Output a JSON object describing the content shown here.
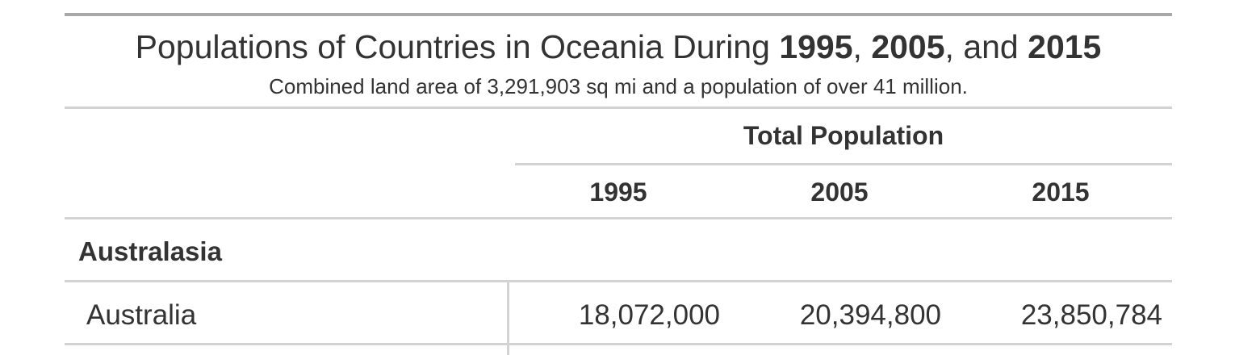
{
  "table": {
    "title": {
      "prefix": "Populations of Countries in Oceania During ",
      "year1": "1995",
      "sep1": ", ",
      "year2": "2005",
      "sep2": ", and ",
      "year3": "2015"
    },
    "subtitle": "Combined land area of 3,291,903 sq mi and a population of over 41 million.",
    "spanner": "Total Population",
    "columns": [
      "1995",
      "2005",
      "2015"
    ],
    "groups": [
      {
        "label": "Australasia",
        "rows": [
          {
            "country": "Australia",
            "values": [
              "18,072,000",
              "20,394,800",
              "23,850,784"
            ]
          }
        ]
      }
    ]
  }
}
